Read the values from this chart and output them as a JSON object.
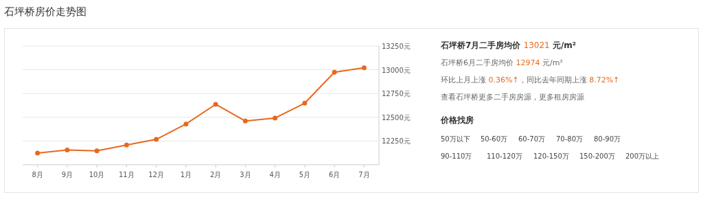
{
  "chart_data": [
    {
      "type": "line",
      "title": "石坪桥房价走势图",
      "categories": [
        "8月",
        "9月",
        "10月",
        "11月",
        "12月",
        "1月",
        "2月",
        "3月",
        "4月",
        "5月",
        "6月",
        "7月"
      ],
      "series": [
        {
          "color": "#e8681e",
          "values": [
            12123,
            12155,
            12146,
            12207,
            12267,
            12429,
            12636,
            12460,
            12492,
            12648,
            12974,
            13021
          ]
        }
      ],
      "ylim": [
        12000,
        13250
      ],
      "yticks": [
        {
          "value": 12250,
          "label": "12250元"
        },
        {
          "value": 12500,
          "label": "12500元"
        },
        {
          "value": 12750,
          "label": "12750元"
        },
        {
          "value": 13000,
          "label": "13000元"
        },
        {
          "value": 13250,
          "label": "13250元"
        }
      ],
      "grid": "y",
      "marker": "circle"
    },
    {
      "type": "other",
      "annotations": [
        "石坪桥7月二手房均价 13021 元/m²",
        "石坪桥6月二手房均价 12974 元/m²",
        "环比上月上涨 0.36%↑，同比去年同期上涨 8.72%↑",
        "查看石坪桥更多二手房房源，更多租房房源",
        "价格找房",
        "50万以下",
        "50-60万",
        "60-70万",
        "70-80万",
        "80-90万",
        "90-110万",
        "110-120万",
        "120-150万",
        "150-200万",
        "200万以上"
      ]
    }
  ]
}
